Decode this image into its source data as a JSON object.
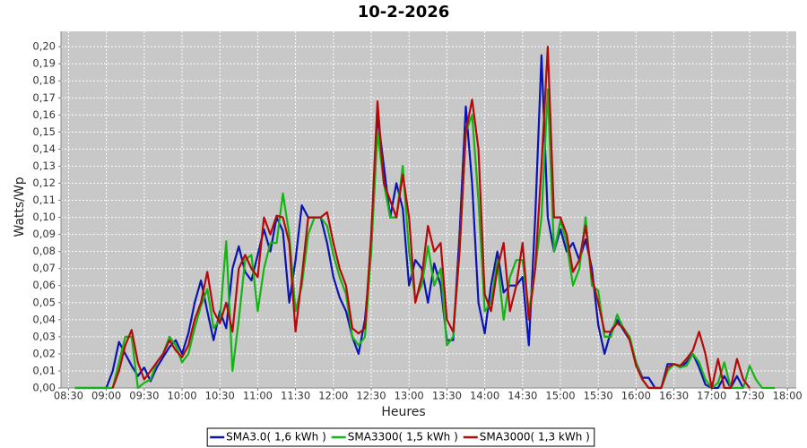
{
  "chart_data": {
    "type": "line",
    "title": "10-2-2026",
    "x_label": "Heures",
    "y_label": "Watts/Wp",
    "x": [
      "08:35",
      "08:40",
      "08:45",
      "08:50",
      "08:55",
      "09:00",
      "09:05",
      "09:10",
      "09:15",
      "09:20",
      "09:25",
      "09:30",
      "09:35",
      "09:40",
      "09:45",
      "09:50",
      "09:55",
      "10:00",
      "10:05",
      "10:10",
      "10:15",
      "10:20",
      "10:25",
      "10:30",
      "10:35",
      "10:40",
      "10:45",
      "10:50",
      "10:55",
      "11:00",
      "11:05",
      "11:10",
      "11:15",
      "11:20",
      "11:25",
      "11:30",
      "11:35",
      "11:40",
      "11:45",
      "11:50",
      "11:55",
      "12:00",
      "12:05",
      "12:10",
      "12:15",
      "12:20",
      "12:25",
      "12:30",
      "12:35",
      "12:40",
      "12:45",
      "12:50",
      "12:55",
      "13:00",
      "13:05",
      "13:10",
      "13:15",
      "13:20",
      "13:25",
      "13:30",
      "13:35",
      "13:40",
      "13:45",
      "13:50",
      "13:55",
      "14:00",
      "14:05",
      "14:10",
      "14:15",
      "14:20",
      "14:25",
      "14:30",
      "14:35",
      "14:40",
      "14:45",
      "14:50",
      "14:55",
      "15:00",
      "15:05",
      "15:10",
      "15:15",
      "15:20",
      "15:25",
      "15:30",
      "15:35",
      "15:40",
      "15:45",
      "15:50",
      "15:55",
      "16:00",
      "16:05",
      "16:10",
      "16:15",
      "16:20",
      "16:25",
      "16:30",
      "16:35",
      "16:40",
      "16:45",
      "16:50",
      "16:55",
      "17:00",
      "17:05",
      "17:10",
      "17:15",
      "17:20",
      "17:25",
      "17:30",
      "17:35",
      "17:40",
      "17:45",
      "17:50",
      "17:55"
    ],
    "series": [
      {
        "name": "SMA3.0( 1,6 kWh )",
        "color": "#0a14b4",
        "values": [
          0,
          0,
          0,
          0,
          0,
          0,
          0.01,
          0.027,
          0.02,
          0.013,
          0.007,
          0.012,
          0.004,
          0.012,
          0.018,
          0.024,
          0.028,
          0.02,
          0.032,
          0.05,
          0.063,
          0.045,
          0.028,
          0.045,
          0.035,
          0.07,
          0.083,
          0.068,
          0.063,
          0.078,
          0.093,
          0.08,
          0.1,
          0.092,
          0.05,
          0.075,
          0.107,
          0.1,
          0.1,
          0.1,
          0.085,
          0.065,
          0.053,
          0.045,
          0.03,
          0.02,
          0.04,
          0.08,
          0.16,
          0.13,
          0.1,
          0.12,
          0.105,
          0.06,
          0.075,
          0.07,
          0.05,
          0.073,
          0.06,
          0.028,
          0.028,
          0.09,
          0.165,
          0.12,
          0.05,
          0.032,
          0.06,
          0.08,
          0.056,
          0.06,
          0.06,
          0.065,
          0.025,
          0.1,
          0.195,
          0.1,
          0.08,
          0.093,
          0.08,
          0.085,
          0.075,
          0.087,
          0.07,
          0.037,
          0.02,
          0.033,
          0.04,
          0.034,
          0.028,
          0.015,
          0.006,
          0.006,
          0,
          0,
          0.014,
          0.014,
          0.012,
          0.015,
          0.02,
          0.012,
          0.002,
          0,
          0,
          0.007,
          0,
          0.007,
          0,
          null,
          null,
          null,
          null,
          null,
          null
        ]
      },
      {
        "name": "SMA3300( 1,5 kWh )",
        "color": "#14b414",
        "values": [
          0,
          0,
          0,
          0,
          0,
          0,
          0,
          0.015,
          0.03,
          0.03,
          0,
          0.003,
          0.005,
          0.015,
          0.02,
          0.03,
          0.025,
          0.015,
          0.02,
          0.035,
          0.048,
          0.058,
          0.035,
          0.04,
          0.086,
          0.01,
          0.04,
          0.075,
          0.078,
          0.045,
          0.07,
          0.085,
          0.085,
          0.114,
          0.09,
          0.045,
          0.06,
          0.09,
          0.1,
          0.1,
          0.095,
          0.078,
          0.065,
          0.055,
          0.03,
          0.025,
          0.03,
          0.08,
          0.15,
          0.12,
          0.1,
          0.1,
          0.13,
          0.08,
          0.052,
          0.06,
          0.083,
          0.06,
          0.07,
          0.025,
          0.03,
          0.08,
          0.15,
          0.16,
          0.11,
          0.045,
          0.05,
          0.075,
          0.04,
          0.065,
          0.075,
          0.075,
          0.045,
          0.07,
          0.1,
          0.175,
          0.08,
          0.098,
          0.085,
          0.06,
          0.07,
          0.1,
          0.06,
          0.057,
          0.03,
          0.03,
          0.043,
          0.035,
          0.03,
          0.015,
          0.005,
          0,
          0,
          0,
          0.01,
          0.014,
          0.012,
          0.013,
          0.02,
          0.015,
          0.005,
          0,
          0.003,
          0.015,
          0,
          0,
          0,
          0.013,
          0.005,
          0,
          0,
          0,
          null
        ]
      },
      {
        "name": "SMA3000( 1,3 kWh )",
        "color": "#b40a0a",
        "values": [
          null,
          null,
          null,
          null,
          null,
          null,
          0,
          0.01,
          0.025,
          0.034,
          0.015,
          0.005,
          0.01,
          0.015,
          0.02,
          0.028,
          0.022,
          0.018,
          0.025,
          0.04,
          0.05,
          0.068,
          0.045,
          0.038,
          0.05,
          0.033,
          0.07,
          0.078,
          0.07,
          0.065,
          0.1,
          0.09,
          0.101,
          0.1,
          0.085,
          0.033,
          0.065,
          0.1,
          0.1,
          0.1,
          0.103,
          0.085,
          0.07,
          0.06,
          0.035,
          0.032,
          0.035,
          0.09,
          0.168,
          0.12,
          0.11,
          0.1,
          0.125,
          0.1,
          0.05,
          0.065,
          0.095,
          0.08,
          0.085,
          0.04,
          0.033,
          0.08,
          0.15,
          0.169,
          0.14,
          0.055,
          0.045,
          0.07,
          0.085,
          0.045,
          0.06,
          0.085,
          0.04,
          0.07,
          0.13,
          0.2,
          0.1,
          0.1,
          0.09,
          0.068,
          0.075,
          0.095,
          0.065,
          0.05,
          0.033,
          0.033,
          0.038,
          0.035,
          0.028,
          0.013,
          0.005,
          0,
          0,
          0,
          0.012,
          0.014,
          0.013,
          0.017,
          0.022,
          0.033,
          0.02,
          0,
          0.017,
          0,
          0,
          0.017,
          0.005,
          0,
          null,
          null,
          null,
          null,
          null
        ]
      }
    ],
    "xlim": [
      "08:24",
      "18:07"
    ],
    "xticks": [
      "08:30",
      "09:00",
      "09:30",
      "10:00",
      "10:30",
      "11:00",
      "11:30",
      "12:00",
      "12:30",
      "13:00",
      "13:30",
      "14:00",
      "14:30",
      "15:00",
      "15:30",
      "16:00",
      "16:30",
      "17:00",
      "17:30",
      "18:00"
    ],
    "ylim": [
      0,
      0.209
    ],
    "yticks": [
      {
        "value": 0,
        "label": "0,00"
      },
      {
        "value": 0.01,
        "label": "0,01"
      },
      {
        "value": 0.02,
        "label": "0,02"
      },
      {
        "value": 0.03,
        "label": "0,03"
      },
      {
        "value": 0.04,
        "label": "0,04"
      },
      {
        "value": 0.05,
        "label": "0,05"
      },
      {
        "value": 0.06,
        "label": "0,06"
      },
      {
        "value": 0.07,
        "label": "0,07"
      },
      {
        "value": 0.08,
        "label": "0,08"
      },
      {
        "value": 0.09,
        "label": "0,09"
      },
      {
        "value": 0.1,
        "label": "0,10"
      },
      {
        "value": 0.11,
        "label": "0,11"
      },
      {
        "value": 0.12,
        "label": "0,12"
      },
      {
        "value": 0.13,
        "label": "0,13"
      },
      {
        "value": 0.14,
        "label": "0,14"
      },
      {
        "value": 0.15,
        "label": "0,15"
      },
      {
        "value": 0.16,
        "label": "0,16"
      },
      {
        "value": 0.17,
        "label": "0,17"
      },
      {
        "value": 0.18,
        "label": "0,18"
      },
      {
        "value": 0.19,
        "label": "0,19"
      },
      {
        "value": 0.2,
        "label": "0,20"
      }
    ],
    "grid": true,
    "legend": "bottom",
    "plot_background": "#c8c8c8"
  }
}
